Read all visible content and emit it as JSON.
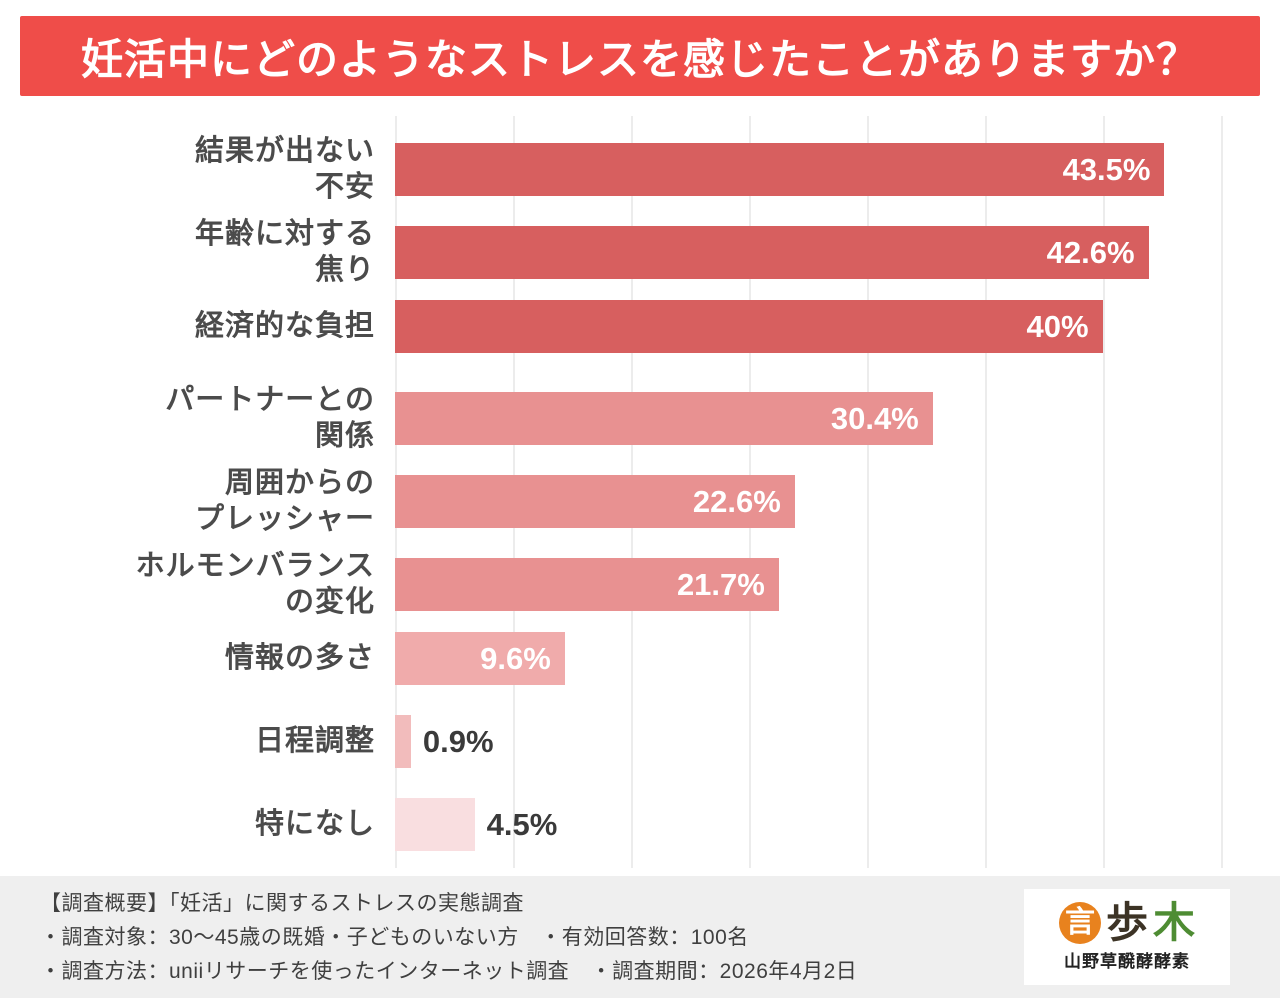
{
  "header": {
    "title": "妊活中にどのようなストレスを感じたことがありますか？"
  },
  "chart_data": {
    "type": "bar",
    "orientation": "horizontal",
    "title": "妊活中にどのようなストレスを感じたことがありますか？",
    "categories": [
      "結果が出ない不安",
      "年齢に対する焦り",
      "経済的な負担",
      "パートナーとの関係",
      "周囲からのプレッシャー",
      "ホルモンバランスの変化",
      "情報の多さ",
      "日程調整",
      "特になし"
    ],
    "category_lines": [
      [
        "結果が出ない",
        "不安"
      ],
      [
        "年齢に対する",
        "焦り"
      ],
      [
        "経済的な負担"
      ],
      [
        "パートナーとの",
        "関係"
      ],
      [
        "周囲からの",
        "プレッシャー"
      ],
      [
        "ホルモンバランス",
        "の変化"
      ],
      [
        "情報の多さ"
      ],
      [
        "日程調整"
      ],
      [
        "特になし"
      ]
    ],
    "values": [
      43.5,
      42.6,
      40,
      30.4,
      22.6,
      21.7,
      9.6,
      0.9,
      4.5
    ],
    "value_labels": [
      "43.5%",
      "42.6%",
      "40%",
      "30.4%",
      "22.6%",
      "21.7%",
      "9.6%",
      "0.9%",
      "4.5%"
    ],
    "bar_colors": [
      "#d75f5f",
      "#d75f5f",
      "#d75f5f",
      "#e89191",
      "#e89191",
      "#e89191",
      "#f0abab",
      "#f2bcbc",
      "#f9dee0"
    ],
    "label_inside": [
      true,
      true,
      true,
      true,
      true,
      true,
      true,
      false,
      false
    ],
    "label_color_inside": "#ffffff",
    "label_color_outside": "#3a3a3a",
    "xlim": [
      0,
      48.9
    ],
    "grid": true,
    "unit": "%"
  },
  "footer": {
    "lines": [
      "【調査概要】「妊活」に関するストレスの実態調査",
      "・調査対象：30〜45歳の既婚・子どものいない方　・有効回答数：100名",
      "・調査方法：uniiリサーチを使ったインターネット調査　・調査期間：2026年4月2日"
    ],
    "logo": {
      "glyphs": [
        "言",
        "歩",
        "木"
      ],
      "name": "山野草醗酵酵素"
    }
  },
  "colors": {
    "header_bg": "#ef4d49",
    "footer_bg": "#efefef",
    "grid_line": "#ececec",
    "category_text": "#4b4b4b"
  }
}
